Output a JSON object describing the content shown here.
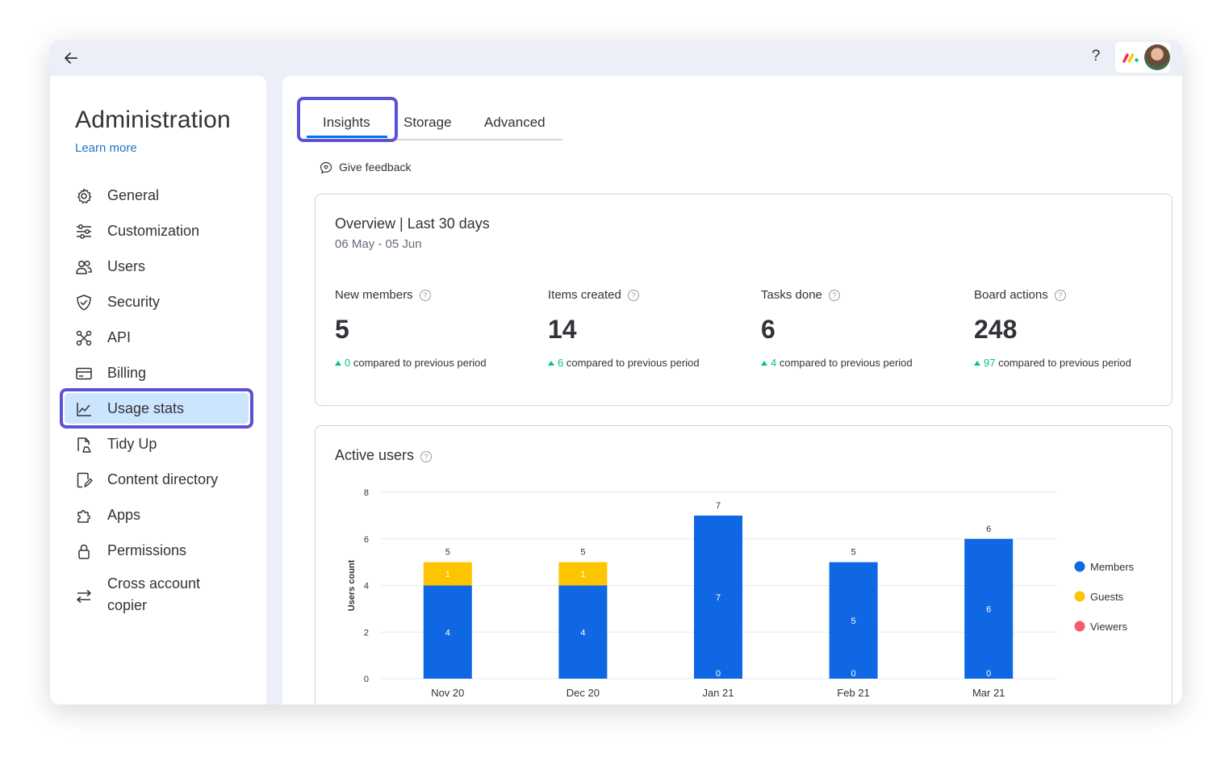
{
  "topbar": {
    "help_label": "?"
  },
  "sidebar": {
    "title": "Administration",
    "learn_more": "Learn more",
    "items": [
      {
        "label": "General",
        "icon": "gear-icon"
      },
      {
        "label": "Customization",
        "icon": "sliders-icon"
      },
      {
        "label": "Users",
        "icon": "users-icon"
      },
      {
        "label": "Security",
        "icon": "shield-icon"
      },
      {
        "label": "API",
        "icon": "api-icon"
      },
      {
        "label": "Billing",
        "icon": "credit-card-icon"
      },
      {
        "label": "Usage stats",
        "icon": "chart-line-icon",
        "active": true
      },
      {
        "label": "Tidy Up",
        "icon": "tidy-up-icon"
      },
      {
        "label": "Content directory",
        "icon": "content-directory-icon"
      },
      {
        "label": "Apps",
        "icon": "puzzle-icon"
      },
      {
        "label": "Permissions",
        "icon": "lock-icon"
      },
      {
        "label": "Cross account copier",
        "icon": "arrows-swap-icon"
      }
    ]
  },
  "tabs": [
    {
      "label": "Insights",
      "active": true
    },
    {
      "label": "Storage"
    },
    {
      "label": "Advanced"
    }
  ],
  "feedback_label": "Give feedback",
  "overview": {
    "title": "Overview | Last 30 days",
    "range": "06 May - 05 Jun",
    "compare_text": "compared to previous period",
    "metrics": [
      {
        "label": "New members",
        "value": "5",
        "delta": "0"
      },
      {
        "label": "Items created",
        "value": "14",
        "delta": "6"
      },
      {
        "label": "Tasks done",
        "value": "6",
        "delta": "4"
      },
      {
        "label": "Board actions",
        "value": "248",
        "delta": "97"
      }
    ]
  },
  "active_users": {
    "title": "Active users"
  },
  "chart_data": {
    "type": "bar",
    "stacked": true,
    "title": "Active users",
    "xlabel": "",
    "ylabel": "Users count",
    "ylim": [
      0,
      8
    ],
    "yticks": [
      0,
      2,
      4,
      6,
      8
    ],
    "grid": true,
    "legend_position": "right",
    "categories": [
      "Nov 20",
      "Dec 20",
      "Jan 21",
      "Feb 21",
      "Mar 21"
    ],
    "totals": [
      5,
      5,
      7,
      5,
      6
    ],
    "series": [
      {
        "name": "Members",
        "color": "#0f67e4",
        "values": [
          4,
          4,
          7,
          5,
          6
        ]
      },
      {
        "name": "Guests",
        "color": "#fdc500",
        "values": [
          1,
          1,
          0,
          0,
          0
        ]
      },
      {
        "name": "Viewers",
        "color": "#f7596d",
        "values": [
          0,
          0,
          0,
          0,
          0
        ]
      }
    ]
  }
}
